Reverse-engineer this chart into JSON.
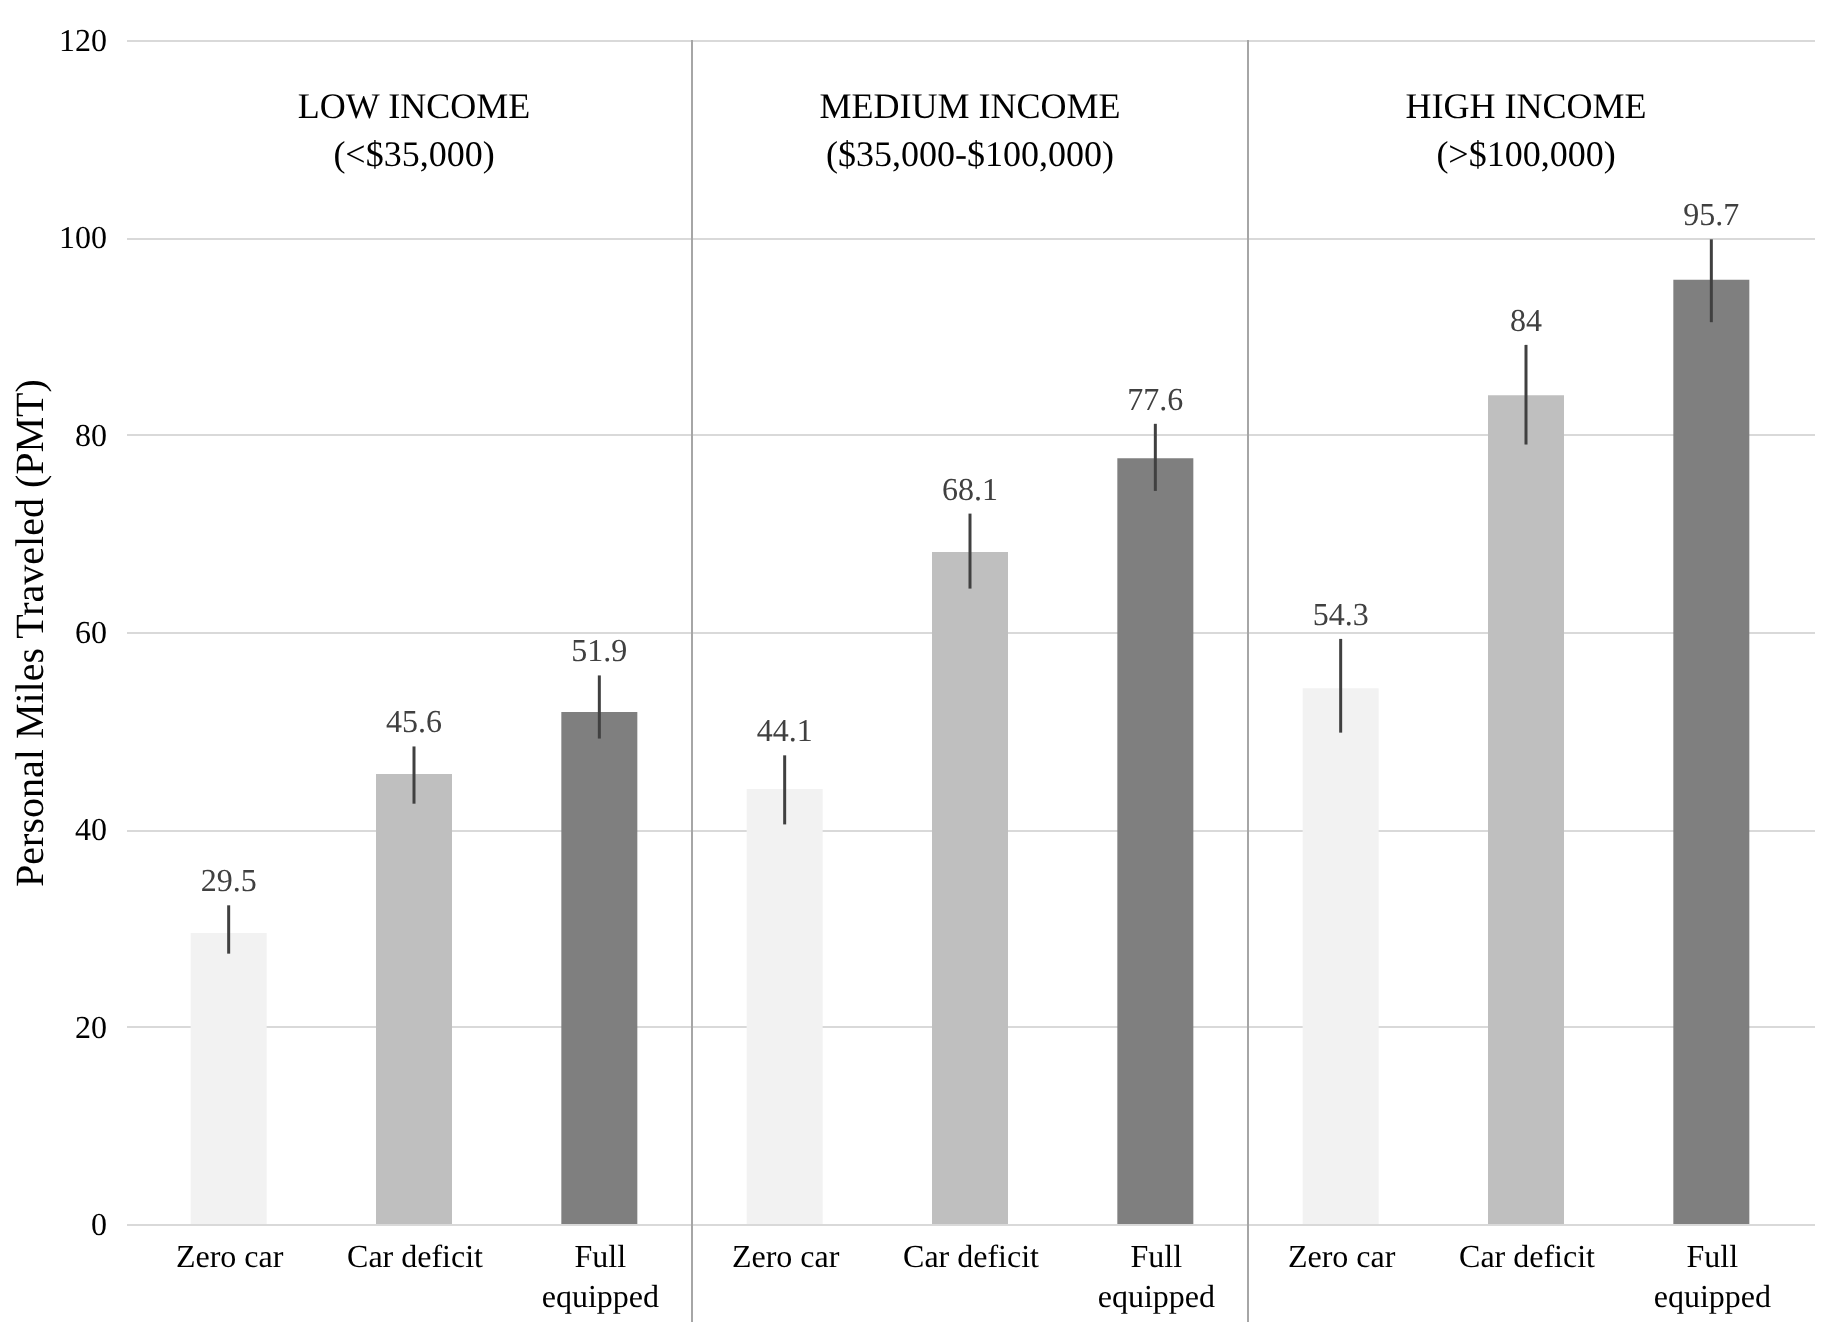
{
  "chart_data": {
    "type": "bar",
    "ylabel": "Personal Miles Traveled (PMT)",
    "categories": [
      "Zero car",
      "Car deficit",
      "Full equipped",
      "Zero car",
      "Car deficit",
      "Full equipped",
      "Zero car",
      "Car deficit",
      "Full equipped"
    ],
    "values": [
      29.5,
      45.6,
      51.9,
      44.1,
      68.1,
      77.6,
      54.3,
      84,
      95.7
    ],
    "colors": [
      "#f2f2f2",
      "#bfbfbf",
      "#7f7f7f",
      "#f2f2f2",
      "#bfbfbf",
      "#7f7f7f",
      "#f2f2f2",
      "#bfbfbf",
      "#7f7f7f"
    ],
    "errors": [
      [
        27.4,
        32.3
      ],
      [
        42.6,
        48.4
      ],
      [
        49.2,
        55.6
      ],
      [
        40.5,
        47.5
      ],
      [
        64.4,
        72
      ],
      [
        74.3,
        81.1
      ],
      [
        49.8,
        59.3
      ],
      [
        79,
        89.1
      ],
      [
        91.4,
        99.8
      ]
    ],
    "annotations": [
      "LOW INCOME\n(<$35,000)",
      "MEDIUM INCOME\n($35,000-$100,000)",
      "HIGH INCOME\n(>$100,000)"
    ],
    "ylim": [
      0,
      120
    ],
    "yticks": [
      0,
      20,
      40,
      60,
      80,
      100,
      120
    ],
    "grid": "y",
    "data_labels": true
  }
}
